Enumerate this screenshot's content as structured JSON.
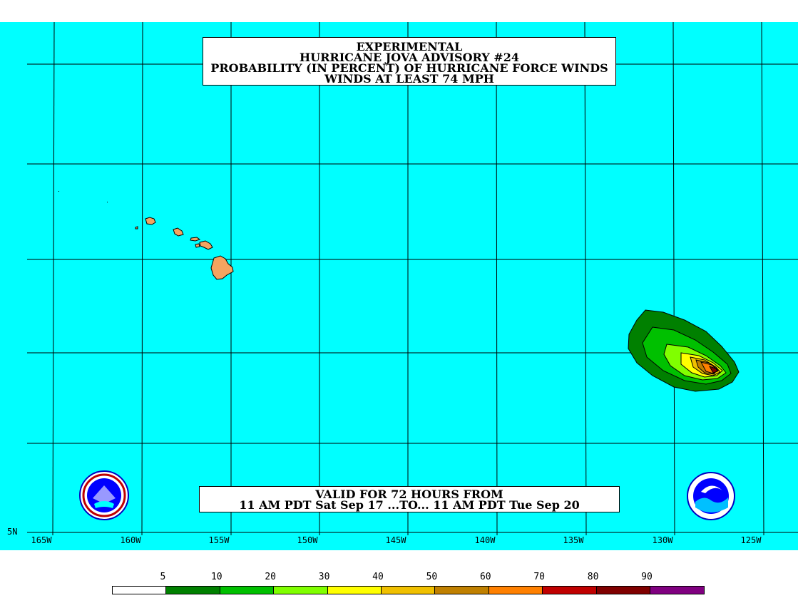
{
  "title": {
    "line1": "EXPERIMENTAL",
    "line2": "HURRICANE JOVA ADVISORY #24",
    "line3": "PROBABILITY (IN PERCENT) OF HURRICANE FORCE WINDS",
    "line4": "WINDS AT LEAST 74 MPH"
  },
  "valid": {
    "line1": "VALID FOR 72 HOURS FROM",
    "line2": "11 AM PDT Sat Sep 17 ...TO... 11 AM PDT Tue Sep 20"
  },
  "axes": {
    "lon_labels": [
      "165W",
      "160W",
      "155W",
      "150W",
      "145W",
      "140W",
      "135W",
      "130W",
      "125W"
    ],
    "lat_label": "5N"
  },
  "legend": {
    "labels": [
      "5",
      "10",
      "20",
      "30",
      "40",
      "50",
      "60",
      "70",
      "80",
      "90"
    ],
    "colors": [
      "#ffffff",
      "#008000",
      "#00c000",
      "#80ff00",
      "#ffff00",
      "#f0c000",
      "#c08000",
      "#ff8000",
      "#c00000",
      "#800000",
      "#800080"
    ]
  },
  "colors": {
    "ocean": "#00ffff",
    "land": "#f4a460"
  },
  "logos": {
    "left": "nws-logo",
    "right": "noaa-logo"
  }
}
